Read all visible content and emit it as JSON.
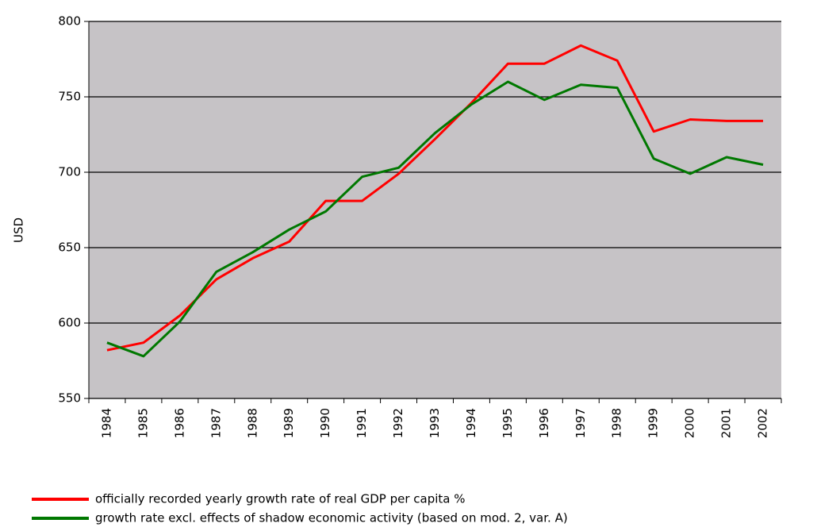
{
  "chart_data": {
    "type": "line",
    "categories": [
      "1984",
      "1985",
      "1986",
      "1987",
      "1988",
      "1989",
      "1990",
      "1991",
      "1992",
      "1993",
      "1994",
      "1995",
      "1996",
      "1997",
      "1998",
      "1999",
      "2000",
      "2001",
      "2002"
    ],
    "ylabel": "USD",
    "ylim": [
      550,
      800
    ],
    "yticks": [
      550,
      600,
      650,
      700,
      750,
      800
    ],
    "grid": true,
    "series": [
      {
        "name": "officially recorded yearly growth rate of real GDP per capita %",
        "color": "#ff0000",
        "values": [
          582,
          587,
          605,
          629,
          643,
          654,
          681,
          681,
          699,
          722,
          746,
          772,
          772,
          784,
          774,
          727,
          735,
          734,
          734
        ]
      },
      {
        "name": "growth rate excl. effects of shadow economic activity (based on mod. 2, var. A)",
        "color": "#007800",
        "values": [
          587,
          578,
          601,
          634,
          647,
          662,
          674,
          697,
          703,
          726,
          745,
          760,
          748,
          758,
          756,
          709,
          699,
          710,
          705
        ]
      }
    ]
  }
}
